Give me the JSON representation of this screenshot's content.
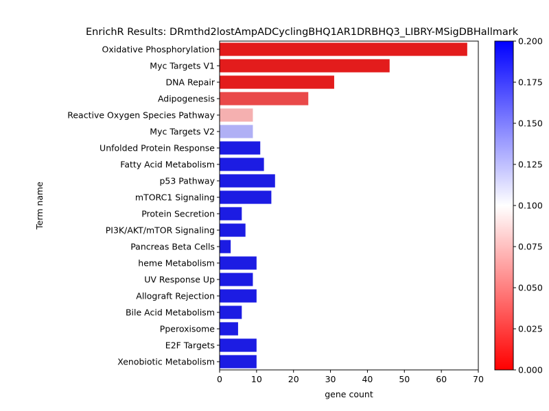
{
  "chart_data": {
    "type": "bar",
    "orientation": "horizontal",
    "title": "EnrichR Results: DRmthd2lostAmpADCyclingBHQ1AR1DRBHQ3_LIBRY-MSigDBHallmark",
    "xlabel": "gene count",
    "ylabel": "Term name",
    "xlim": [
      0,
      70
    ],
    "xticks": [
      "0",
      "10",
      "20",
      "30",
      "40",
      "50",
      "60",
      "70"
    ],
    "categories": [
      "Oxidative Phosphorylation",
      "Myc Targets V1",
      "DNA Repair",
      "Adipogenesis",
      "Reactive Oxygen Species Pathway",
      "Myc Targets V2",
      "Unfolded Protein Response",
      "Fatty Acid Metabolism",
      "p53 Pathway",
      "mTORC1 Signaling",
      "Protein Secretion",
      "PI3K/AKT/mTOR  Signaling",
      "Pancreas Beta Cells",
      "heme Metabolism",
      "UV Response Up",
      "Allograft Rejection",
      "Bile Acid Metabolism",
      "Pperoxisome",
      "E2F Targets",
      "Xenobiotic Metabolism"
    ],
    "values": [
      67,
      46,
      31,
      24,
      9,
      9,
      11,
      12,
      15,
      14,
      6,
      7,
      3,
      10,
      9,
      10,
      6,
      5,
      10,
      10
    ],
    "color_values": [
      0.0,
      0.0,
      0.0,
      0.02,
      0.065,
      0.135,
      0.2,
      0.2,
      0.2,
      0.2,
      0.2,
      0.2,
      0.2,
      0.2,
      0.2,
      0.2,
      0.2,
      0.2,
      0.2,
      0.2
    ],
    "colorbar": {
      "min": 0.0,
      "max": 0.2,
      "ticks": [
        "0.000",
        "0.025",
        "0.050",
        "0.075",
        "0.100",
        "0.125",
        "0.150",
        "0.175",
        "0.200"
      ],
      "colormap": [
        "#ff0000",
        "#ffffff",
        "#0000ff"
      ]
    },
    "grid": false,
    "legend": "none"
  }
}
